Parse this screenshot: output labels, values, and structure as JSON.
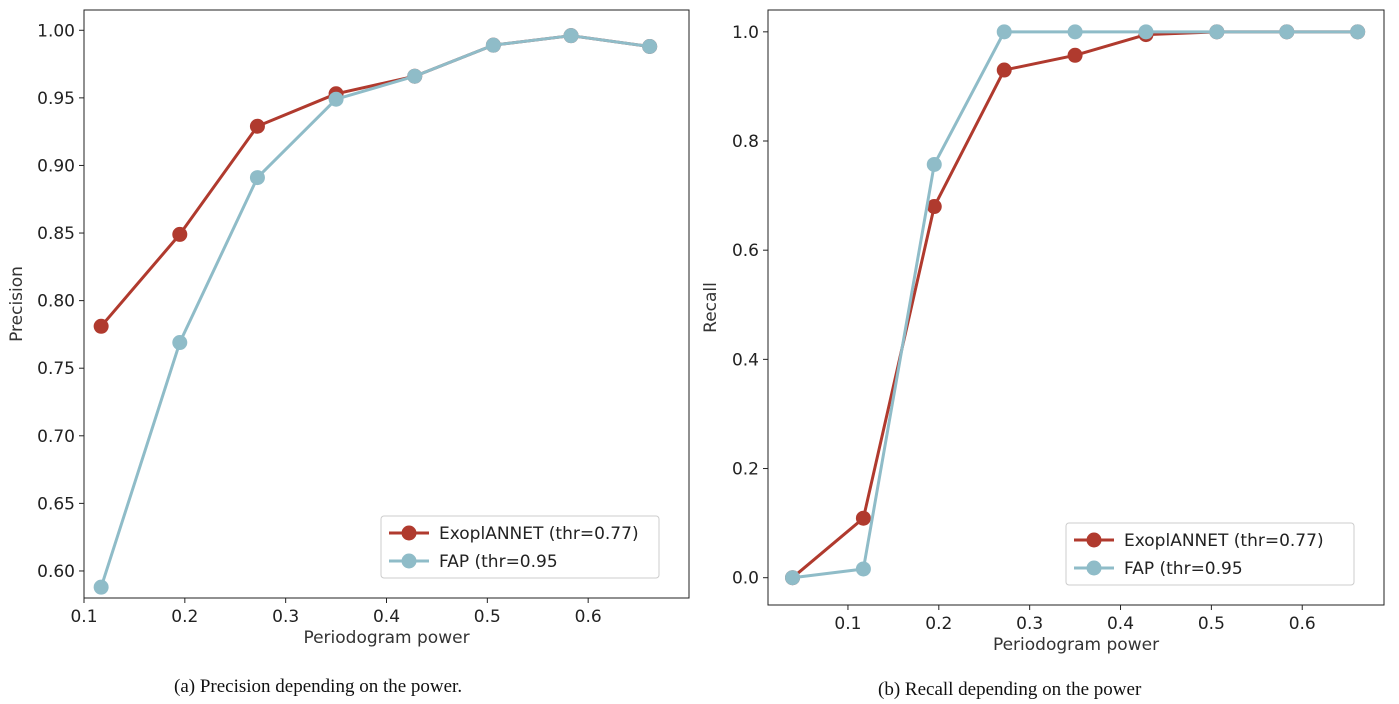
{
  "chart_data": [
    {
      "type": "line",
      "caption": "(a) Precision depending on the power.",
      "xlabel": "Periodogram power",
      "ylabel": "Precision",
      "xlim": [
        0.1,
        0.7
      ],
      "ylim": [
        0.58,
        1.015
      ],
      "xticks": [
        0.1,
        0.2,
        0.3,
        0.4,
        0.5,
        0.6
      ],
      "yticks": [
        0.6,
        0.65,
        0.7,
        0.75,
        0.8,
        0.85,
        0.9,
        0.95,
        1.0
      ],
      "ytick_decimals": 2,
      "legend_position": "lower-right",
      "x": [
        0.117,
        0.195,
        0.272,
        0.35,
        0.428,
        0.506,
        0.583,
        0.661
      ],
      "series": [
        {
          "name": "ExoplANNET (thr=0.77)",
          "color": "#b03a2e",
          "values": [
            0.781,
            0.849,
            0.929,
            0.953,
            0.966,
            0.989,
            0.996,
            0.988
          ]
        },
        {
          "name": "FAP (thr=0.95",
          "color": "#8fbcc8",
          "values": [
            0.588,
            0.769,
            0.891,
            0.949,
            0.966,
            0.989,
            0.996,
            0.988
          ]
        }
      ]
    },
    {
      "type": "line",
      "caption": "(b) Recall depending on the power",
      "xlabel": "Periodogram power",
      "ylabel": "Recall",
      "xlim": [
        0.012,
        0.69
      ],
      "ylim": [
        -0.05,
        1.04
      ],
      "xticks": [
        0.1,
        0.2,
        0.3,
        0.4,
        0.5,
        0.6
      ],
      "yticks": [
        0.0,
        0.2,
        0.4,
        0.6,
        0.8,
        1.0
      ],
      "ytick_decimals": 1,
      "legend_position": "lower-right",
      "x": [
        0.039,
        0.117,
        0.195,
        0.272,
        0.35,
        0.428,
        0.506,
        0.583,
        0.661
      ],
      "series": [
        {
          "name": "ExoplANNET (thr=0.77)",
          "color": "#b03a2e",
          "values": [
            0.0,
            0.109,
            0.68,
            0.93,
            0.957,
            0.995,
            1.0,
            1.0,
            1.0
          ]
        },
        {
          "name": "FAP (thr=0.95",
          "color": "#8fbcc8",
          "values": [
            0.0,
            0.016,
            0.757,
            1.0,
            1.0,
            1.0,
            1.0,
            1.0,
            1.0
          ]
        }
      ]
    }
  ]
}
